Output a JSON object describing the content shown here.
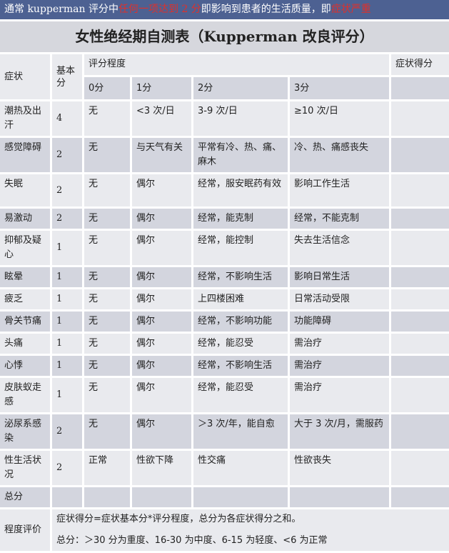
{
  "banner": {
    "prefix": "通常 kupperman 评分中",
    "highlight1": "任何一项达到 2 分",
    "middle": "即影响到患者的生活质量，即",
    "highlight2": "症状严重"
  },
  "title": "女性绝经期自测表（Kupperman 改良评分）",
  "header": {
    "symptom": "症状",
    "base": "基本分",
    "degree": "评分程度",
    "score": "症状得分",
    "levels": [
      "0分",
      "1分",
      "2分",
      "3分"
    ]
  },
  "rows": [
    {
      "symptom": "潮热及出汗",
      "base": "4",
      "levels": [
        "无",
        "<3 次/日",
        "3-9 次/日",
        "≥10 次/日"
      ]
    },
    {
      "symptom": "感觉障碍",
      "base": "2",
      "levels": [
        "无",
        "与天气有关",
        "平常有冷、热、痛、麻木",
        "冷、热、痛感丧失"
      ]
    },
    {
      "symptom": "失眠",
      "base": "2",
      "levels": [
        "无",
        "偶尔",
        "经常，服安眠药有效",
        "影响工作生活"
      ]
    },
    {
      "symptom": "易激动",
      "base": "2",
      "levels": [
        "无",
        "偶尔",
        "经常，能克制",
        "经常，不能克制"
      ]
    },
    {
      "symptom": "抑郁及疑心",
      "base": "1",
      "levels": [
        "无",
        "偶尔",
        "经常，能控制",
        "失去生活信念"
      ]
    },
    {
      "symptom": "眩晕",
      "base": "1",
      "levels": [
        "无",
        "偶尔",
        "经常，不影响生活",
        "影响日常生活"
      ]
    },
    {
      "symptom": "疲乏",
      "base": "1",
      "levels": [
        "无",
        "偶尔",
        "上四楼困难",
        "日常活动受限"
      ]
    },
    {
      "symptom": "骨关节痛",
      "base": "1",
      "levels": [
        "无",
        "偶尔",
        "经常，不影响功能",
        "功能障碍"
      ]
    },
    {
      "symptom": "头痛",
      "base": "1",
      "levels": [
        "无",
        "偶尔",
        "经常，能忍受",
        "需治疗"
      ]
    },
    {
      "symptom": "心悸",
      "base": "1",
      "levels": [
        "无",
        "偶尔",
        "经常，不影响生活",
        "需治疗"
      ]
    },
    {
      "symptom": "皮肤蚁走感",
      "base": "1",
      "levels": [
        "无",
        "偶尔",
        "经常，能忍受",
        "需治疗"
      ]
    },
    {
      "symptom": "泌尿系感染",
      "base": "2",
      "levels": [
        "无",
        "偶尔",
        "＞3 次/年，能自愈",
        "大于 3 次/月，需服药"
      ]
    },
    {
      "symptom": "性生活状况",
      "base": "2",
      "levels": [
        "正常",
        "性欲下降",
        "性交痛",
        "性欲丧失"
      ]
    }
  ],
  "total": {
    "label": "总分"
  },
  "evaluation": {
    "label": "程度评价",
    "line1": "症状得分=症状基本分*评分程度，总分为各症状得分之和。",
    "line2": "总分：＞30 分为重度、16-30 为中度、6-15 为轻度、<6 为正常"
  }
}
